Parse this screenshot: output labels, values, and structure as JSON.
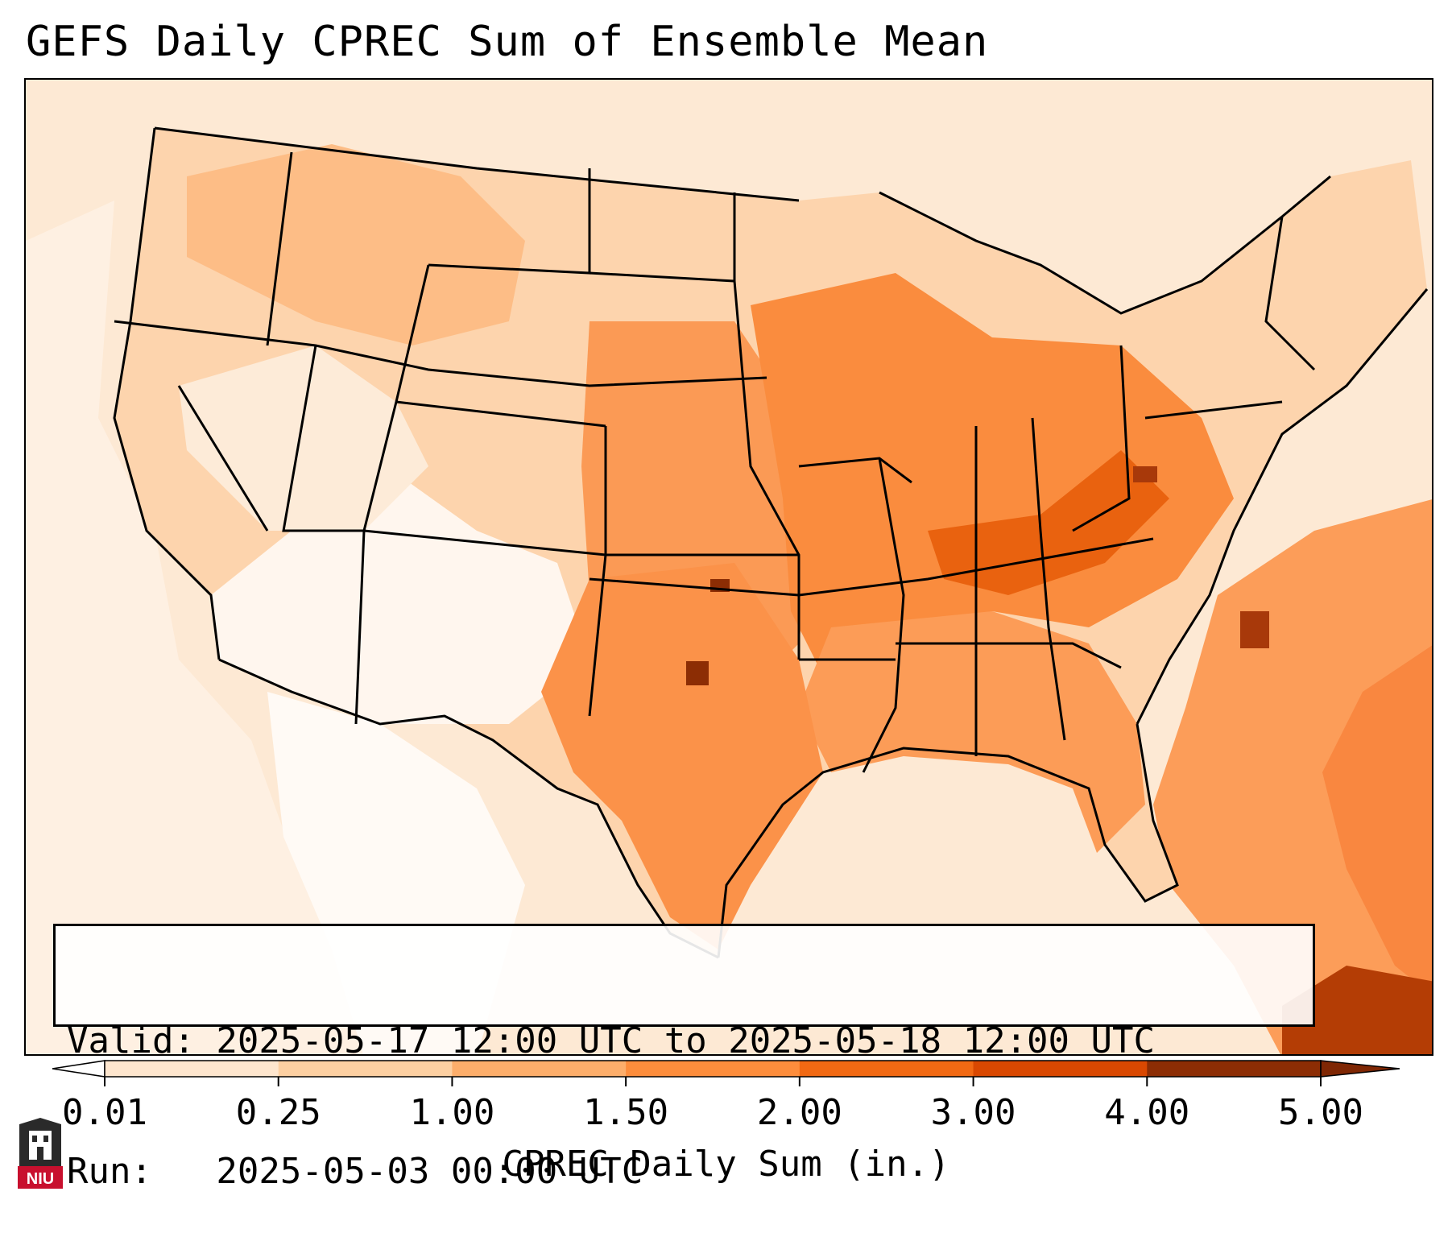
{
  "title": "GEFS Daily CPREC Sum of Ensemble Mean",
  "info": {
    "valid_line": "Valid: 2025-05-17 12:00 UTC to 2025-05-18 12:00 UTC",
    "run_line": "Run:   2025-05-03 00:00 UTC"
  },
  "colorbar": {
    "title": "CPREC Daily Sum (in.)",
    "tick_labels": [
      "0.01",
      "0.25",
      "1.00",
      "1.50",
      "2.00",
      "3.00",
      "4.00",
      "5.00"
    ],
    "colors": [
      "#fff5eb",
      "#fee6ce",
      "#fdd0a2",
      "#fdae6b",
      "#fd8d3c",
      "#f16913",
      "#d94801",
      "#8c2d04"
    ],
    "under_color": "#ffffff",
    "over_color": "#7f2704"
  },
  "logo": {
    "text": "NIU",
    "color": "#c8102e"
  },
  "map": {
    "ocean_color": "#fdebd8",
    "border_color": "#000000"
  }
}
